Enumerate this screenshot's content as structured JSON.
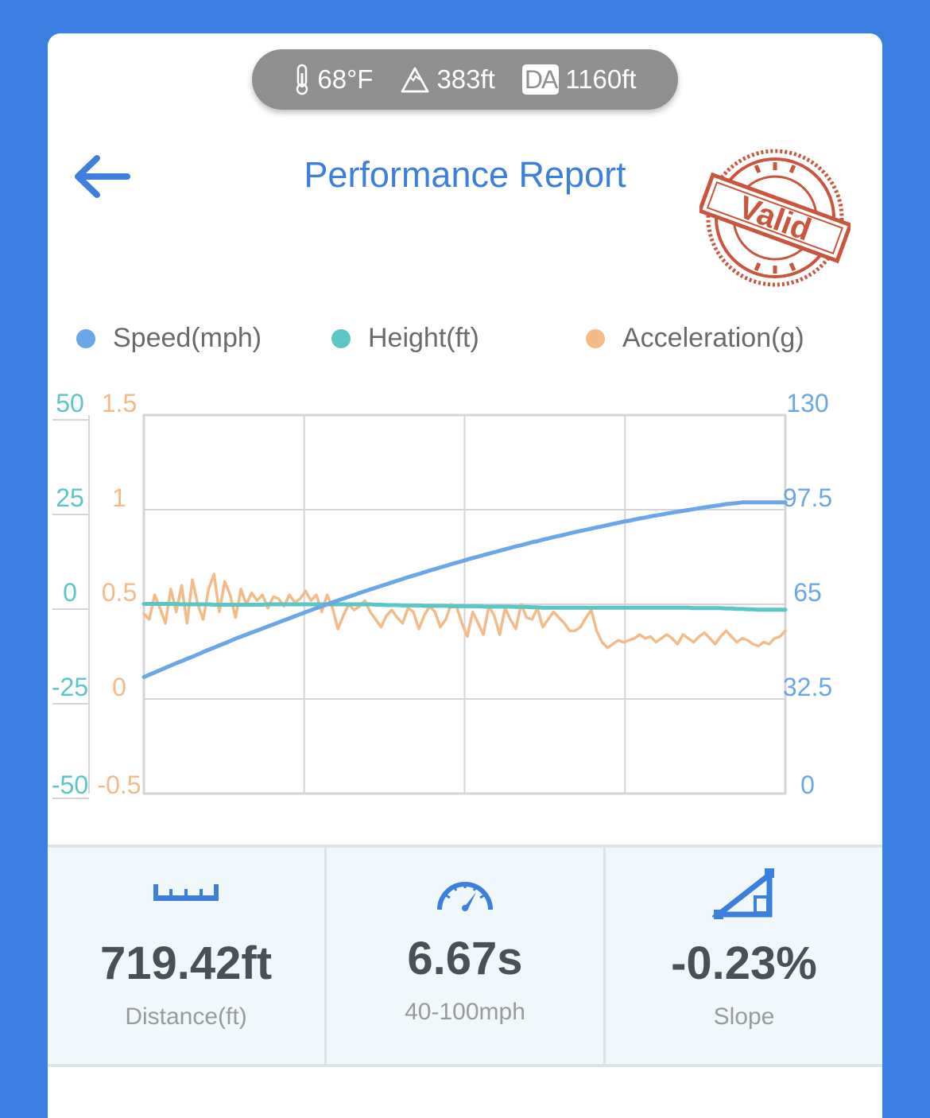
{
  "environment": {
    "temperature": "68°F",
    "altitude": "383ft",
    "da_badge": "DA",
    "density_altitude": "1160ft"
  },
  "header": {
    "title": "Performance Report",
    "stamp_text": "Valid"
  },
  "icons": {
    "back": "arrow-left-icon",
    "temperature": "thermometer-icon",
    "altitude": "mountain-icon",
    "distance": "ruler-icon",
    "time": "speedometer-icon",
    "slope": "slope-icon"
  },
  "colors": {
    "speed": "#6aa6e8",
    "height": "#5cc5c5",
    "acceleration": "#f2bb88",
    "accent": "#3c7fdd",
    "stamp": "#c9553e"
  },
  "chart_data": {
    "type": "line",
    "legend_position": "top",
    "grid": true,
    "x_points": 120,
    "series": [
      {
        "name": "Speed(mph)",
        "axis": "right",
        "values": [
          40.0,
          40.8,
          41.6,
          42.4,
          43.2,
          44.0,
          44.8,
          45.5,
          46.3,
          47.0,
          47.8,
          48.6,
          49.4,
          50.1,
          50.9,
          51.6,
          52.4,
          53.2,
          53.9,
          54.6,
          55.3,
          56.0,
          56.7,
          57.4,
          58.1,
          58.8,
          59.5,
          60.2,
          60.9,
          61.6,
          62.3,
          63.0,
          63.7,
          64.3,
          65.0,
          65.7,
          66.3,
          67.0,
          67.6,
          68.2,
          68.9,
          69.5,
          70.1,
          70.7,
          71.3,
          71.9,
          72.5,
          73.1,
          73.7,
          74.3,
          74.9,
          75.4,
          76.0,
          76.6,
          77.1,
          77.7,
          78.2,
          78.8,
          79.3,
          79.8,
          80.4,
          80.9,
          81.4,
          81.9,
          82.4,
          82.9,
          83.4,
          83.9,
          84.4,
          84.9,
          85.3,
          85.8,
          86.3,
          86.7,
          87.2,
          87.6,
          88.1,
          88.5,
          88.9,
          89.4,
          89.8,
          90.2,
          90.6,
          91.0,
          91.4,
          91.8,
          92.2,
          92.6,
          93.0,
          93.4,
          93.7,
          94.1,
          94.5,
          94.8,
          95.2,
          95.5,
          95.8,
          96.2,
          96.5,
          96.8,
          97.1,
          97.4,
          97.7,
          98.0,
          98.3,
          98.6,
          98.8,
          99.1,
          99.4,
          99.6,
          99.8,
          100.0,
          100.0,
          100.0,
          100.0,
          100.0,
          100.0,
          100.0,
          100.0,
          100.0
        ]
      },
      {
        "name": "Height(ft)",
        "axis": "left-outer",
        "values": [
          0.1,
          0.1,
          0.1,
          0.1,
          0.1,
          0.1,
          0.1,
          0.0,
          0.0,
          0.0,
          0.0,
          0.0,
          0.0,
          -0.1,
          -0.1,
          -0.1,
          -0.1,
          -0.1,
          -0.1,
          -0.1,
          -0.1,
          -0.1,
          -0.1,
          0.0,
          0.0,
          0.0,
          0.0,
          0.0,
          0.0,
          0.0,
          0.0,
          0.0,
          0.0,
          0.0,
          0.0,
          0.0,
          0.0,
          0.0,
          0.0,
          0.0,
          0.0,
          0.0,
          0.0,
          -0.1,
          -0.1,
          -0.2,
          -0.2,
          -0.2,
          -0.3,
          -0.3,
          -0.3,
          -0.3,
          -0.4,
          -0.4,
          -0.4,
          -0.4,
          -0.4,
          -0.5,
          -0.5,
          -0.5,
          -0.5,
          -0.5,
          -0.5,
          -0.6,
          -0.6,
          -0.6,
          -0.6,
          -0.6,
          -0.6,
          -0.7,
          -0.7,
          -0.7,
          -0.8,
          -0.8,
          -0.9,
          -0.9,
          -0.9,
          -0.9,
          -0.9,
          -0.9,
          -0.9,
          -0.9,
          -0.9,
          -0.9,
          -0.9,
          -0.9,
          -0.9,
          -0.9,
          -0.9,
          -0.9,
          -0.9,
          -0.9,
          -0.9,
          -0.9,
          -0.9,
          -0.9,
          -0.9,
          -0.9,
          -0.9,
          -0.9,
          -0.9,
          -0.9,
          -1.0,
          -1.0,
          -1.0,
          -1.0,
          -1.0,
          -1.0,
          -1.1,
          -1.1,
          -1.2,
          -1.2,
          -1.3,
          -1.3,
          -1.4,
          -1.4,
          -1.4,
          -1.4,
          -1.4,
          -1.4
        ]
      },
      {
        "name": "Acceleration(g)",
        "axis": "left-inner",
        "values": [
          0.45,
          0.42,
          0.55,
          0.48,
          0.4,
          0.58,
          0.46,
          0.6,
          0.4,
          0.63,
          0.5,
          0.42,
          0.58,
          0.66,
          0.46,
          0.62,
          0.55,
          0.43,
          0.58,
          0.5,
          0.56,
          0.52,
          0.55,
          0.48,
          0.54,
          0.53,
          0.49,
          0.55,
          0.51,
          0.53,
          0.57,
          0.52,
          0.55,
          0.46,
          0.55,
          0.48,
          0.37,
          0.44,
          0.5,
          0.47,
          0.49,
          0.52,
          0.46,
          0.42,
          0.38,
          0.44,
          0.47,
          0.43,
          0.4,
          0.48,
          0.46,
          0.37,
          0.44,
          0.49,
          0.46,
          0.38,
          0.42,
          0.5,
          0.49,
          0.4,
          0.33,
          0.46,
          0.4,
          0.34,
          0.49,
          0.44,
          0.34,
          0.48,
          0.42,
          0.37,
          0.5,
          0.43,
          0.42,
          0.48,
          0.38,
          0.42,
          0.46,
          0.43,
          0.4,
          0.36,
          0.36,
          0.38,
          0.43,
          0.47,
          0.36,
          0.3,
          0.27,
          0.29,
          0.31,
          0.3,
          0.31,
          0.32,
          0.34,
          0.32,
          0.33,
          0.3,
          0.32,
          0.34,
          0.32,
          0.29,
          0.34,
          0.32,
          0.3,
          0.33,
          0.35,
          0.32,
          0.29,
          0.33,
          0.36,
          0.33,
          0.3,
          0.32,
          0.31,
          0.29,
          0.28,
          0.3,
          0.29,
          0.32,
          0.33,
          0.36
        ]
      }
    ],
    "axes": {
      "left_outer": {
        "ticks": [
          "50",
          "25",
          "0",
          "-25",
          "-50"
        ],
        "range": [
          -50,
          50
        ]
      },
      "left_inner": {
        "ticks": [
          "1.5",
          "1",
          "0.5",
          "0",
          "-0.5"
        ],
        "range": [
          -0.5,
          1.5
        ]
      },
      "right": {
        "ticks": [
          "130",
          "97.5",
          "65",
          "32.5",
          "0"
        ],
        "range": [
          0,
          130
        ]
      }
    }
  },
  "stats": [
    {
      "value": "719.42ft",
      "label": "Distance(ft)"
    },
    {
      "value": "6.67s",
      "label": "40-100mph"
    },
    {
      "value": "-0.23%",
      "label": "Slope"
    }
  ]
}
